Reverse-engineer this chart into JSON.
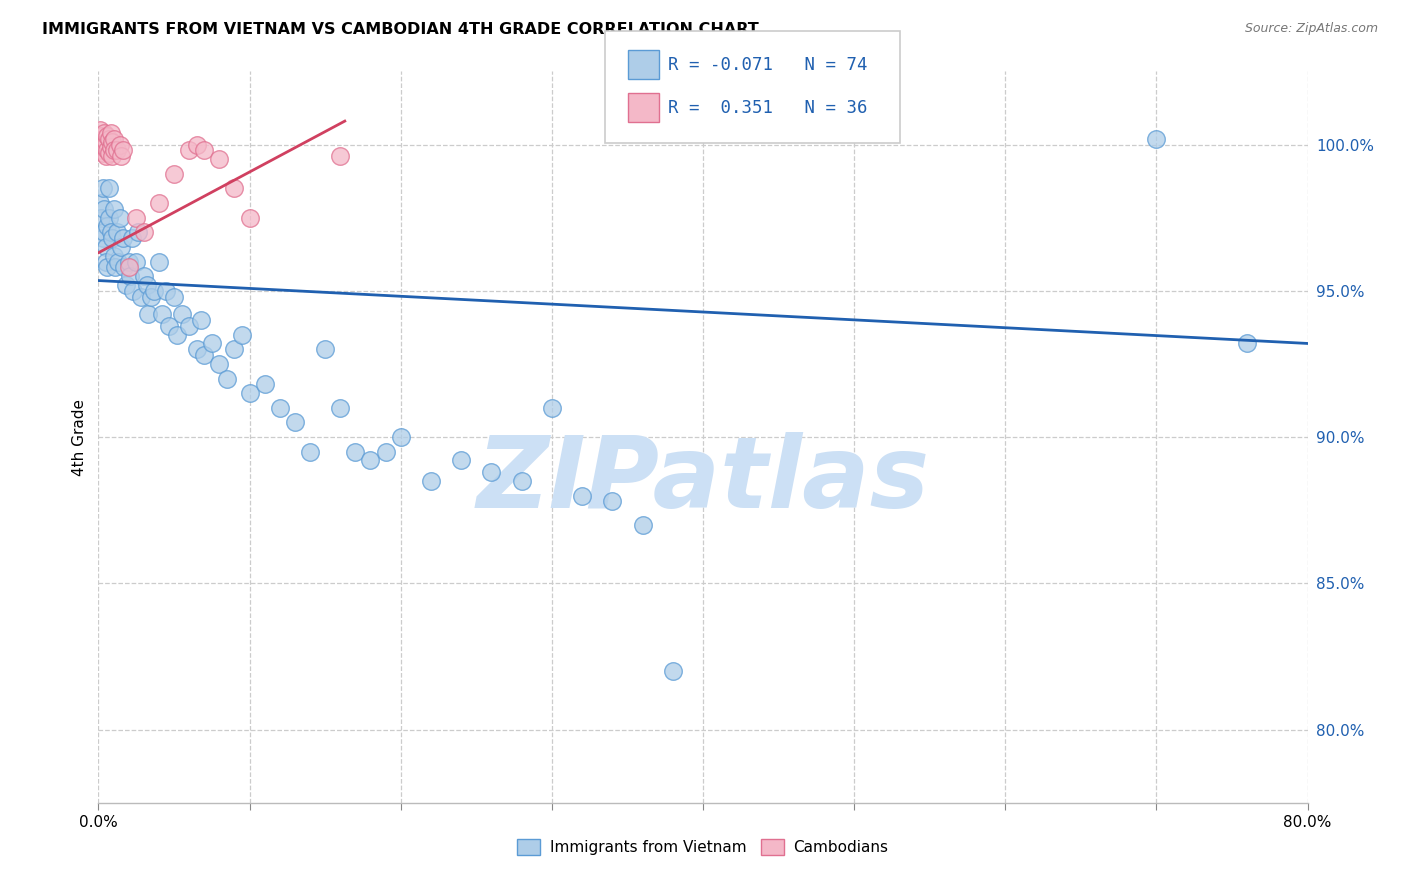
{
  "title": "IMMIGRANTS FROM VIETNAM VS CAMBODIAN 4TH GRADE CORRELATION CHART",
  "source": "Source: ZipAtlas.com",
  "ylabel": "4th Grade",
  "ytick_labels": [
    "100.0%",
    "95.0%",
    "90.0%",
    "85.0%",
    "80.0%"
  ],
  "ytick_values": [
    1.0,
    0.95,
    0.9,
    0.85,
    0.8
  ],
  "xmin": 0.0,
  "xmax": 0.8,
  "ymin": 0.775,
  "ymax": 1.025,
  "legend_text1": "R = -0.071   N = 74",
  "legend_text2": "R =  0.351   N = 36",
  "blue_color": "#aecde8",
  "pink_color": "#f4b8c8",
  "blue_edge": "#5b9bd5",
  "pink_edge": "#e07090",
  "blue_line_color": "#2060b0",
  "pink_line_color": "#d04060",
  "watermark": "ZIPatlas",
  "blue_line_x": [
    0.0,
    0.8
  ],
  "blue_line_y": [
    0.9535,
    0.932
  ],
  "pink_line_x": [
    0.0,
    0.163
  ],
  "pink_line_y": [
    0.963,
    1.008
  ],
  "blue_x": [
    0.001,
    0.002,
    0.003,
    0.003,
    0.004,
    0.004,
    0.005,
    0.005,
    0.006,
    0.006,
    0.007,
    0.007,
    0.008,
    0.009,
    0.01,
    0.01,
    0.011,
    0.012,
    0.013,
    0.014,
    0.015,
    0.016,
    0.017,
    0.018,
    0.02,
    0.021,
    0.022,
    0.023,
    0.025,
    0.026,
    0.028,
    0.03,
    0.032,
    0.033,
    0.035,
    0.037,
    0.04,
    0.042,
    0.045,
    0.047,
    0.05,
    0.052,
    0.055,
    0.06,
    0.065,
    0.068,
    0.07,
    0.075,
    0.08,
    0.085,
    0.09,
    0.095,
    0.1,
    0.11,
    0.12,
    0.13,
    0.14,
    0.15,
    0.16,
    0.17,
    0.18,
    0.19,
    0.2,
    0.22,
    0.24,
    0.26,
    0.28,
    0.3,
    0.32,
    0.34,
    0.36,
    0.38,
    0.7,
    0.76
  ],
  "blue_y": [
    0.98,
    0.975,
    0.968,
    0.985,
    0.97,
    0.978,
    0.965,
    0.96,
    0.972,
    0.958,
    0.985,
    0.975,
    0.97,
    0.968,
    0.978,
    0.962,
    0.958,
    0.97,
    0.96,
    0.975,
    0.965,
    0.968,
    0.958,
    0.952,
    0.96,
    0.955,
    0.968,
    0.95,
    0.96,
    0.97,
    0.948,
    0.955,
    0.952,
    0.942,
    0.948,
    0.95,
    0.96,
    0.942,
    0.95,
    0.938,
    0.948,
    0.935,
    0.942,
    0.938,
    0.93,
    0.94,
    0.928,
    0.932,
    0.925,
    0.92,
    0.93,
    0.935,
    0.915,
    0.918,
    0.91,
    0.905,
    0.895,
    0.93,
    0.91,
    0.895,
    0.892,
    0.895,
    0.9,
    0.885,
    0.892,
    0.888,
    0.885,
    0.91,
    0.88,
    0.878,
    0.87,
    0.82,
    1.002,
    0.932
  ],
  "pink_x": [
    0.001,
    0.001,
    0.002,
    0.002,
    0.003,
    0.003,
    0.004,
    0.004,
    0.005,
    0.005,
    0.006,
    0.006,
    0.007,
    0.007,
    0.008,
    0.008,
    0.009,
    0.009,
    0.01,
    0.01,
    0.012,
    0.014,
    0.015,
    0.016,
    0.02,
    0.025,
    0.03,
    0.04,
    0.05,
    0.06,
    0.065,
    0.07,
    0.08,
    0.09,
    0.1,
    0.16
  ],
  "pink_y": [
    1.005,
    1.0,
    1.003,
    0.998,
    1.002,
    0.997,
    1.004,
    0.999,
    1.001,
    0.996,
    1.003,
    0.998,
    1.002,
    0.997,
    1.004,
    0.999,
    1.001,
    0.996,
    1.002,
    0.998,
    0.998,
    1.0,
    0.996,
    0.998,
    0.958,
    0.975,
    0.97,
    0.98,
    0.99,
    0.998,
    1.0,
    0.998,
    0.995,
    0.985,
    0.975,
    0.996
  ]
}
